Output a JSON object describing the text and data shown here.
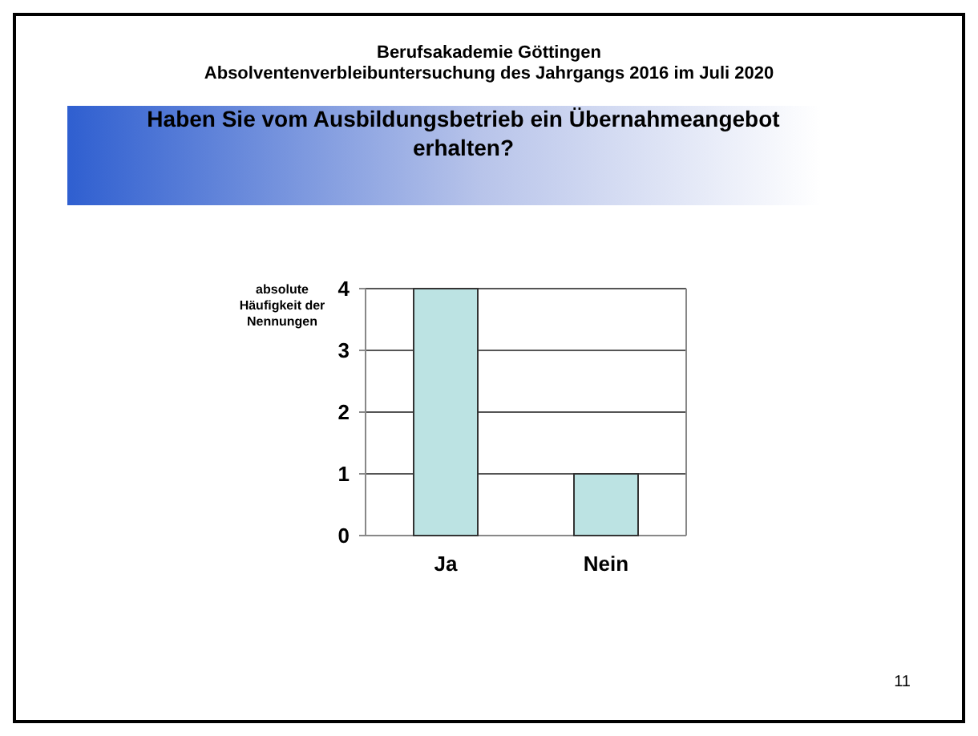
{
  "chart_data": {
    "type": "bar",
    "title": "Haben Sie vom Ausbildungsbetrieb ein Übernahmeangebot erhalten?",
    "ylabel": "absolute Häufigkeit der Nennungen",
    "annotations": [
      "Berufsakademie Göttingen",
      "Absolventenverbleibuntersuchung des Jahrgangs 2016 im Juli 2020",
      "11"
    ],
    "categories": [
      "Ja",
      "Nein"
    ],
    "values": [
      4,
      1
    ],
    "color": "#bce3e3",
    "ylim": [
      0,
      4
    ],
    "yticks": [
      0,
      1,
      2,
      3,
      4
    ],
    "grid": "y"
  }
}
